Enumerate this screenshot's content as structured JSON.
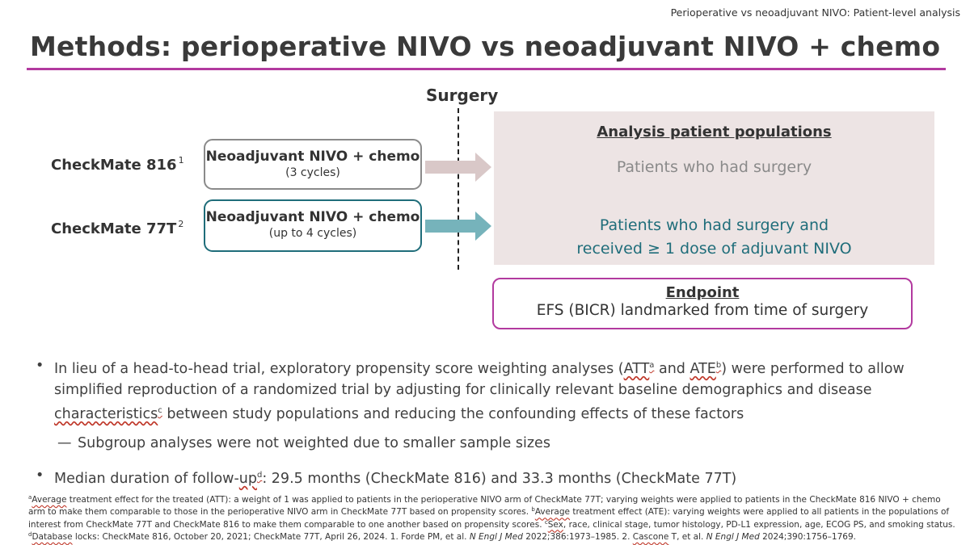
{
  "header": {
    "tag": "Perioperative vs neoadjuvant NIVO: Patient-level analysis"
  },
  "title": "Methods: perioperative NIVO vs neoadjuvant NIVO + chemo",
  "diagram": {
    "surgery_label": "Surgery",
    "trials": [
      {
        "name": "CheckMate 816",
        "ref": "1",
        "arm_title": "Neoadjuvant NIVO + chemo",
        "arm_sub": "(3 cycles)",
        "color": "#8a8a8a",
        "arrow_color": "#d9c8c8"
      },
      {
        "name": "CheckMate 77T",
        "ref": "2",
        "arm_title": "Neoadjuvant NIVO + chemo",
        "arm_sub": "(up to 4 cycles)",
        "color": "#1f6d7a",
        "arrow_color": "#76b3bb"
      }
    ],
    "populations": {
      "title": "Analysis patient populations",
      "cm816": "Patients who had surgery",
      "cm77t_line1": "Patients who had surgery and",
      "cm77t_line2": "received ≥ 1 dose of adjuvant NIVO"
    },
    "endpoint": {
      "title": "Endpoint",
      "text": "EFS (BICR) landmarked from time of surgery"
    }
  },
  "bullets": {
    "b1_part1": "In lieu of a head-to-head trial, exploratory propensity score weighting analyses (",
    "att": "ATT",
    "att_sup": "a",
    "and": " and ",
    "ate": "ATE",
    "ate_sup": "b",
    "b1_part2": ") were performed to allow simplified reproduction of a randomized trial by adjusting for clinically relevant baseline demographics and disease ",
    "characteristics": "characteristics",
    "char_sup": "c",
    "b1_part3": " between study populations and reducing the confounding effects of these factors",
    "sub1": "Subgroup analyses were not weighted due to smaller sample sizes",
    "b2_part1": "Median duration of follow-",
    "b2_up": "up",
    "b2_sup": "d",
    "b2_part2": ": 29.5 months (CheckMate 816) and 33.3 months (CheckMate 77T)"
  },
  "footnotes": {
    "a_sup": "a",
    "a_word": "Average",
    "a_text": " treatment effect for the treated (ATT): a weight of 1 was applied to patients in the perioperative NIVO arm of CheckMate 77T; varying weights were applied to patients in the CheckMate 816 NIVO + chemo arm to make them comparable to those in the perioperative NIVO arm in CheckMate 77T based on propensity scores. ",
    "b_sup": "b",
    "b_word": "Average",
    "b_text": " treatment effect (ATE): varying weights were applied to all patients in the populations of interest from CheckMate 77T and CheckMate 816 to make them comparable to one another based on propensity scores. ",
    "c_sup": "c",
    "c_word": "Sex",
    "c_text": ", race, clinical stage, tumor histology, PD-L1 expression, age, ECOG PS, and smoking status.",
    "d_sup": "d",
    "d_word": "Database",
    "d_text": " locks: CheckMate 816, October 20, 2021; CheckMate 77T, April 26, 2024. 1. Forde PM, et al. ",
    "journal1": "N Engl J Med",
    "ref1": " 2022;386:1973–1985. 2. ",
    "cascone": "Cascone",
    "ref2_mid": " T, et al. ",
    "journal2": "N Engl J Med",
    "ref2": " 2024;390:1756–1769."
  }
}
